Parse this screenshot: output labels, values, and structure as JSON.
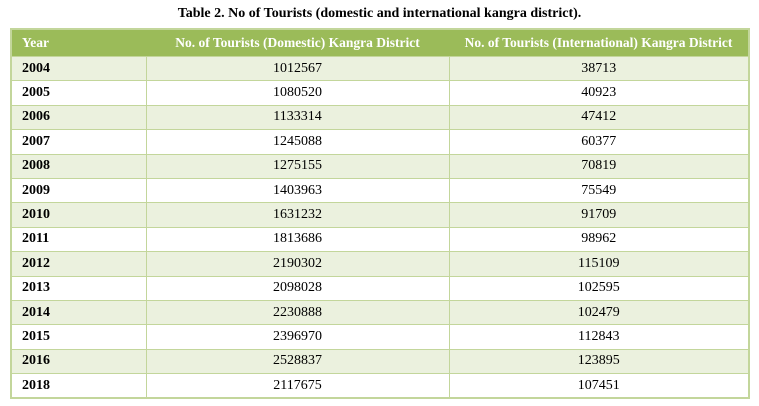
{
  "caption": "Table 2. No of Tourists (domestic and international kangra district).",
  "table": {
    "columns": [
      "Year",
      "No. of Tourists (Domestic) Kangra District",
      "No. of Tourists (International) Kangra District"
    ],
    "rows": [
      [
        "2004",
        "1012567",
        "38713"
      ],
      [
        "2005",
        "1080520",
        "40923"
      ],
      [
        "2006",
        "1133314",
        "47412"
      ],
      [
        "2007",
        "1245088",
        "60377"
      ],
      [
        "2008",
        "1275155",
        "70819"
      ],
      [
        "2009",
        "1403963",
        "75549"
      ],
      [
        "2010",
        "1631232",
        "91709"
      ],
      [
        "2011",
        "1813686",
        "98962"
      ],
      [
        "2012",
        "2190302",
        "115109"
      ],
      [
        "2013",
        "2098028",
        "102595"
      ],
      [
        "2014",
        "2230888",
        "102479"
      ],
      [
        "2015",
        "2396970",
        "112843"
      ],
      [
        "2016",
        "2528837",
        "123895"
      ],
      [
        "2018",
        "2117675",
        "107451"
      ]
    ]
  },
  "colors": {
    "header_bg": "#9BBB59",
    "header_text": "#FFFFFF",
    "stripe_bg": "#EBF1DE",
    "plain_bg": "#FFFFFF",
    "border": "#C3D69B",
    "body_text": "#000000"
  }
}
